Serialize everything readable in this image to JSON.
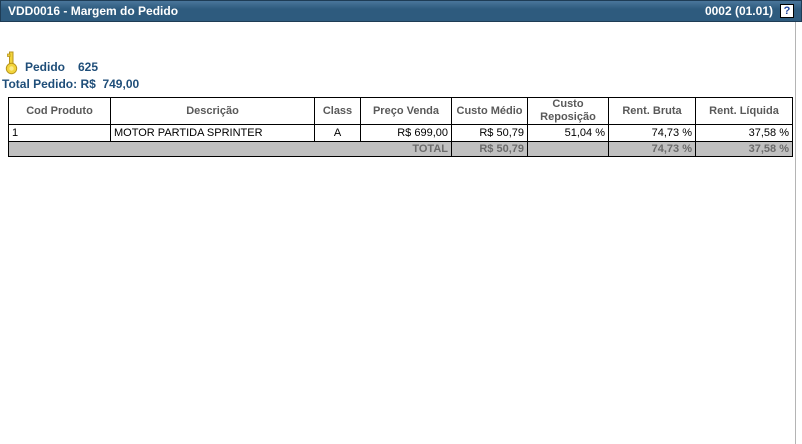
{
  "titlebar": {
    "title": "VDD0016 - Margem do Pedido",
    "version": "0002 (01.01)",
    "help_icon": "?"
  },
  "order": {
    "pedido_label": "Pedido",
    "pedido_number": "625",
    "total_label": "Total Pedido:",
    "total_value": "R$  749,00"
  },
  "table": {
    "columns": [
      "Cod Produto",
      "Descrição",
      "Class",
      "Preço Venda",
      "Custo Médio",
      "Custo Reposição",
      "Rent. Bruta",
      "Rent. Líquida"
    ],
    "rows": [
      [
        "1",
        "MOTOR PARTIDA SPRINTER",
        "A",
        "R$ 699,00",
        "R$ 50,79",
        "51,04 %",
        "74,73 %",
        "37,58 %"
      ]
    ],
    "total_row": {
      "label": "TOTAL",
      "cells": [
        "R$ 50,79",
        "",
        "74,73 %",
        "37,58 %"
      ]
    }
  },
  "colors": {
    "titlebar_bg": "#2e5b7e",
    "accent_text": "#1f4e79",
    "header_text": "#595959",
    "total_row_bg": "#c0c0c0",
    "total_row_text": "#6b6b6b",
    "table_border": "#000000",
    "key_icon_fill": "#f2d43c"
  }
}
